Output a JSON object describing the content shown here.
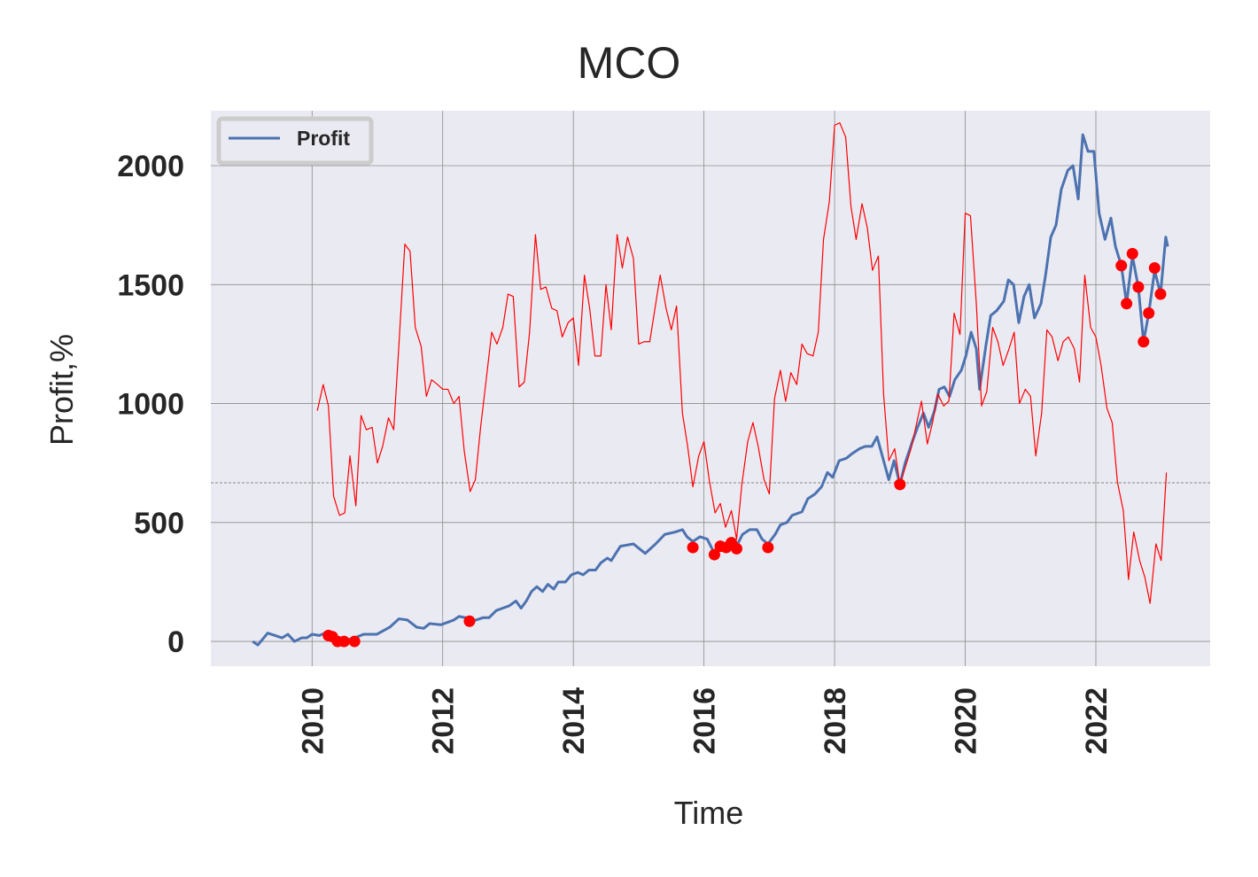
{
  "chart_data": {
    "type": "line",
    "title": "MCO",
    "x_label": "Time",
    "y_label": "Profit,%",
    "xlim": [
      2008.45,
      2023.75
    ],
    "ylim": [
      -104,
      2231
    ],
    "xticks": [
      2010,
      2012,
      2014,
      2016,
      2018,
      2020,
      2022
    ],
    "yticks": [
      0,
      500,
      1000,
      1500,
      2000
    ],
    "grid": true,
    "legend": "upper left",
    "reference_line": {
      "value": 667,
      "style": "dashed",
      "color": "#888888"
    },
    "series": [
      {
        "name": "Profit",
        "color": "#4c72b0",
        "style": "line",
        "width": 3,
        "x": [
          2009.09,
          2009.17,
          2009.32,
          2009.43,
          2009.54,
          2009.63,
          2009.73,
          2009.84,
          2009.92,
          2010.0,
          2010.11,
          2010.24,
          2010.34,
          2010.45,
          2010.54,
          2010.65,
          2010.79,
          2010.99,
          2011.19,
          2011.33,
          2011.46,
          2011.6,
          2011.71,
          2011.8,
          2011.97,
          2012.17,
          2012.25,
          2012.35,
          2012.41,
          2012.51,
          2012.62,
          2012.71,
          2012.82,
          2012.92,
          2013.02,
          2013.12,
          2013.2,
          2013.28,
          2013.36,
          2013.44,
          2013.53,
          2013.61,
          2013.7,
          2013.77,
          2013.88,
          2013.97,
          2014.07,
          2014.15,
          2014.24,
          2014.34,
          2014.42,
          2014.52,
          2014.58,
          2014.65,
          2014.72,
          2014.92,
          2015.1,
          2015.26,
          2015.4,
          2015.56,
          2015.67,
          2015.74,
          2015.83,
          2015.94,
          2016.05,
          2016.16,
          2016.28,
          2016.39,
          2016.48,
          2016.59,
          2016.7,
          2016.81,
          2016.89,
          2016.98,
          2017.09,
          2017.17,
          2017.27,
          2017.35,
          2017.5,
          2017.59,
          2017.7,
          2017.8,
          2017.89,
          2017.97,
          2018.07,
          2018.18,
          2018.27,
          2018.38,
          2018.47,
          2018.57,
          2018.65,
          2018.73,
          2018.83,
          2018.91,
          2019.0,
          2019.08,
          2019.19,
          2019.27,
          2019.36,
          2019.44,
          2019.53,
          2019.6,
          2019.68,
          2019.76,
          2019.84,
          2019.94,
          2020.01,
          2020.09,
          2020.17,
          2020.22,
          2020.32,
          2020.39,
          2020.48,
          2020.59,
          2020.66,
          2020.74,
          2020.82,
          2020.9,
          2020.98,
          2021.06,
          2021.16,
          2021.23,
          2021.31,
          2021.39,
          2021.47,
          2021.57,
          2021.65,
          2021.73,
          2021.8,
          2021.88,
          2021.97,
          2022.05,
          2022.14,
          2022.23,
          2022.3,
          2022.39,
          2022.47,
          2022.56,
          2022.65,
          2022.73,
          2022.81,
          2022.9,
          2022.99,
          2023.07,
          2023.1
        ],
        "values": [
          0,
          -15,
          35,
          25,
          15,
          30,
          0,
          15,
          15,
          30,
          25,
          40,
          15,
          0,
          5,
          15,
          30,
          30,
          60,
          95,
          90,
          60,
          55,
          75,
          70,
          90,
          105,
          100,
          85,
          90,
          100,
          100,
          130,
          140,
          150,
          170,
          140,
          170,
          210,
          230,
          210,
          240,
          220,
          250,
          250,
          280,
          290,
          280,
          300,
          300,
          330,
          350,
          340,
          370,
          400,
          410,
          370,
          410,
          450,
          460,
          470,
          440,
          420,
          440,
          430,
          370,
          400,
          420,
          390,
          450,
          470,
          470,
          430,
          410,
          450,
          490,
          500,
          530,
          545,
          600,
          620,
          650,
          710,
          690,
          760,
          770,
          790,
          810,
          820,
          820,
          860,
          780,
          680,
          760,
          660,
          750,
          840,
          900,
          960,
          900,
          970,
          1060,
          1070,
          1030,
          1100,
          1140,
          1200,
          1300,
          1230,
          1060,
          1250,
          1370,
          1390,
          1430,
          1520,
          1500,
          1340,
          1450,
          1500,
          1360,
          1420,
          1540,
          1700,
          1750,
          1900,
          1980,
          2000,
          1860,
          2130,
          2060,
          2060,
          1800,
          1690,
          1780,
          1660,
          1580,
          1420,
          1620,
          1490,
          1260,
          1380,
          1560,
          1460,
          1700,
          1660
        ]
      },
      {
        "color": "#ff0000",
        "style": "line",
        "width": 1.2,
        "x": [
          2010.08,
          2010.17,
          2010.25,
          2010.33,
          2010.42,
          2010.5,
          2010.58,
          2010.67,
          2010.75,
          2010.83,
          2010.92,
          2011.0,
          2011.08,
          2011.17,
          2011.25,
          2011.33,
          2011.42,
          2011.5,
          2011.58,
          2011.67,
          2011.75,
          2011.83,
          2011.92,
          2012.0,
          2012.08,
          2012.17,
          2012.25,
          2012.33,
          2012.42,
          2012.5,
          2012.58,
          2012.67,
          2012.75,
          2012.83,
          2012.92,
          2013.0,
          2013.08,
          2013.17,
          2013.25,
          2013.33,
          2013.42,
          2013.5,
          2013.58,
          2013.67,
          2013.75,
          2013.83,
          2013.92,
          2014.0,
          2014.08,
          2014.17,
          2014.25,
          2014.33,
          2014.42,
          2014.5,
          2014.58,
          2014.67,
          2014.75,
          2014.83,
          2014.92,
          2015.0,
          2015.08,
          2015.17,
          2015.25,
          2015.33,
          2015.42,
          2015.5,
          2015.58,
          2015.67,
          2015.75,
          2015.83,
          2015.92,
          2016.0,
          2016.08,
          2016.17,
          2016.25,
          2016.33,
          2016.42,
          2016.5,
          2016.58,
          2016.67,
          2016.75,
          2016.83,
          2016.92,
          2017.0,
          2017.08,
          2017.17,
          2017.25,
          2017.33,
          2017.42,
          2017.5,
          2017.58,
          2017.67,
          2017.75,
          2017.83,
          2017.92,
          2018.0,
          2018.08,
          2018.17,
          2018.25,
          2018.33,
          2018.42,
          2018.5,
          2018.58,
          2018.67,
          2018.75,
          2018.83,
          2018.92,
          2019.0,
          2019.08,
          2019.17,
          2019.25,
          2019.33,
          2019.42,
          2019.5,
          2019.58,
          2019.67,
          2019.75,
          2019.83,
          2019.92,
          2020.0,
          2020.08,
          2020.17,
          2020.25,
          2020.33,
          2020.42,
          2020.5,
          2020.58,
          2020.67,
          2020.75,
          2020.83,
          2020.92,
          2021.0,
          2021.08,
          2021.17,
          2021.25,
          2021.33,
          2021.42,
          2021.5,
          2021.58,
          2021.67,
          2021.75,
          2021.83,
          2021.92,
          2022.0,
          2022.08,
          2022.17,
          2022.25,
          2022.33,
          2022.42,
          2022.5,
          2022.58,
          2022.67,
          2022.75,
          2022.83,
          2022.92,
          2023.0,
          2023.08
        ],
        "values": [
          970,
          1080,
          990,
          610,
          530,
          540,
          780,
          570,
          950,
          890,
          900,
          750,
          820,
          940,
          890,
          1250,
          1670,
          1640,
          1320,
          1240,
          1030,
          1100,
          1080,
          1060,
          1060,
          1000,
          1030,
          800,
          630,
          680,
          900,
          1110,
          1300,
          1250,
          1320,
          1460,
          1450,
          1070,
          1090,
          1300,
          1710,
          1480,
          1490,
          1400,
          1390,
          1280,
          1340,
          1360,
          1160,
          1540,
          1400,
          1200,
          1200,
          1500,
          1310,
          1710,
          1570,
          1700,
          1610,
          1250,
          1260,
          1260,
          1400,
          1540,
          1400,
          1310,
          1410,
          960,
          820,
          650,
          780,
          840,
          680,
          540,
          580,
          480,
          550,
          430,
          660,
          840,
          920,
          820,
          680,
          620,
          1020,
          1140,
          1010,
          1130,
          1080,
          1250,
          1210,
          1200,
          1300,
          1690,
          1850,
          2170,
          2180,
          2120,
          1830,
          1690,
          1840,
          1740,
          1560,
          1620,
          1040,
          760,
          810,
          660,
          730,
          810,
          910,
          1010,
          830,
          920,
          1040,
          990,
          1010,
          1380,
          1290,
          1800,
          1790,
          1420,
          990,
          1050,
          1320,
          1260,
          1160,
          1230,
          1300,
          1000,
          1060,
          1030,
          780,
          960,
          1310,
          1280,
          1180,
          1260,
          1280,
          1230,
          1090,
          1540,
          1320,
          1280,
          1160,
          980,
          920,
          670,
          550,
          260,
          460,
          340,
          270,
          160,
          410,
          340,
          710
        ]
      },
      {
        "color": "#ff0000",
        "style": "points",
        "x": [
          2010.25,
          2010.31,
          2010.39,
          2010.49,
          2010.65,
          2012.41,
          2015.83,
          2016.16,
          2016.25,
          2016.34,
          2016.42,
          2016.5,
          2016.98,
          2019.0,
          2022.39,
          2022.47,
          2022.56,
          2022.65,
          2022.73,
          2022.81,
          2022.9,
          2022.99
        ],
        "values": [
          25,
          20,
          0,
          0,
          0,
          85,
          395,
          365,
          400,
          395,
          415,
          390,
          395,
          660,
          1580,
          1420,
          1630,
          1490,
          1260,
          1380,
          1570,
          1460
        ]
      }
    ]
  }
}
